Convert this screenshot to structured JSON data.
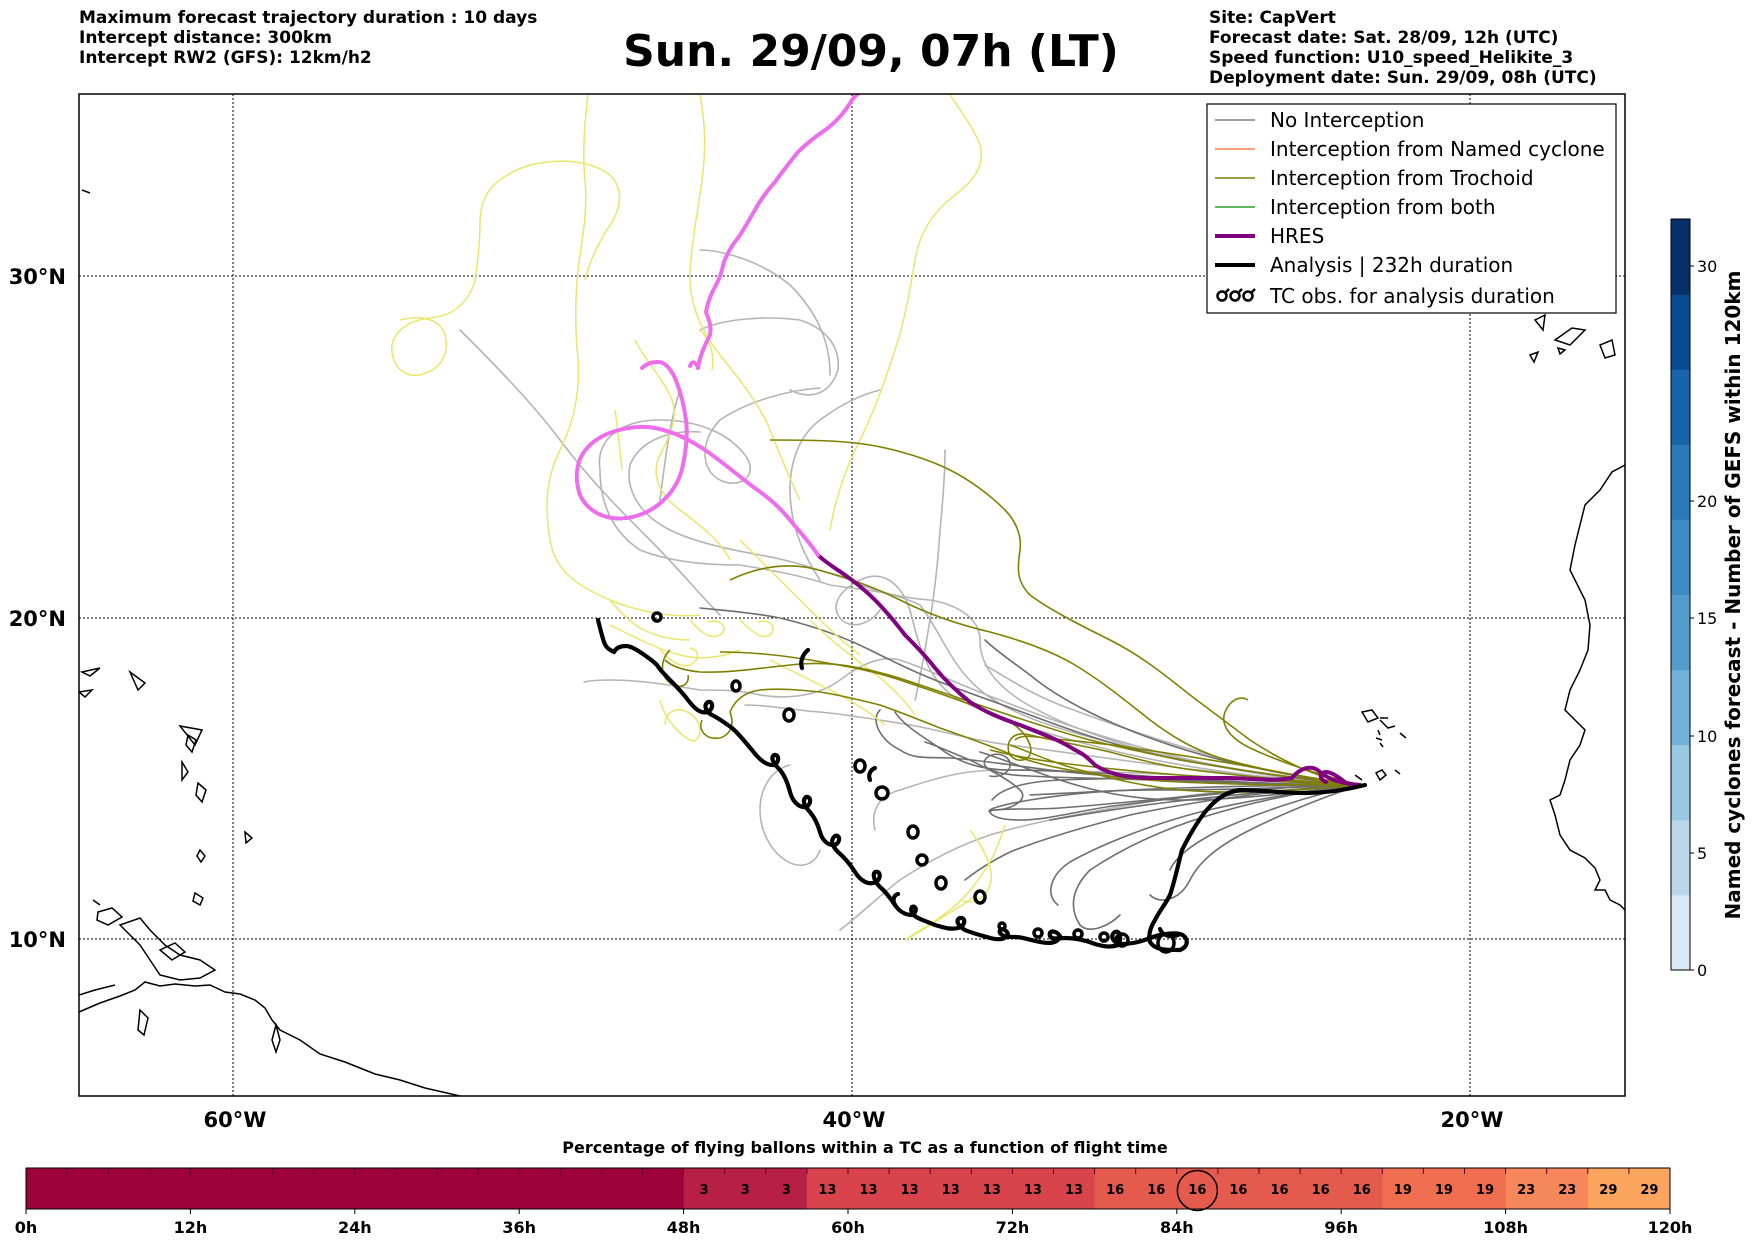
{
  "header": {
    "left": [
      "Maximum forecast trajectory duration : 10 days",
      "Intercept distance: 300km",
      "Intercept RW2 (GFS):  12km/h2"
    ],
    "title": "Sun. 29/09, 07h (LT)",
    "right": [
      "Site: CapVert",
      "Forecast date: Sat. 28/09, 12h (UTC)",
      "Speed function: U10_speed_Helikite_3",
      "Deployment date: Sun. 29/09, 08h (UTC)"
    ]
  },
  "map": {
    "lat_labels": [
      "30°N",
      "20°N",
      "10°N"
    ],
    "lon_labels": [
      "60°W",
      "40°W",
      "20°W"
    ],
    "legend": [
      {
        "label": "No Interception",
        "color": "#808080"
      },
      {
        "label": "Interception from Named cyclone",
        "color": "#ff7f50"
      },
      {
        "label": "Interception from Trochoid",
        "color": "#808000"
      },
      {
        "label": "Interception from both",
        "color": "#2ca02c"
      },
      {
        "label": "HRES",
        "color": "#800080"
      },
      {
        "label": "Analysis | 232h duration",
        "color": "#000000"
      },
      {
        "label": "TC obs. for analysis duration",
        "color": "#000000",
        "icon": "tc-symbol-icon"
      }
    ]
  },
  "colorbar": {
    "label": "Named cyclones forecast - Number of GEFS within 120km",
    "ticks": [
      "0",
      "5",
      "10",
      "15",
      "20",
      "30"
    ],
    "colors": [
      "#dbe9f6",
      "#bad6eb",
      "#9ac8e0",
      "#73b2d8",
      "#529dcc",
      "#3d8dc4",
      "#2a7ab9",
      "#1764ab",
      "#0a4a90",
      "#08306b"
    ]
  },
  "timeline": {
    "title": "Percentage of flying ballons within a TC as a function of flight time",
    "hour_labels": [
      "0h",
      "12h",
      "24h",
      "36h",
      "48h",
      "60h",
      "72h",
      "84h",
      "96h",
      "108h",
      "120h"
    ],
    "cell_values": [
      "",
      "",
      "",
      "",
      "",
      "",
      "",
      "",
      "",
      "",
      "",
      "",
      "",
      "",
      "",
      "",
      "3",
      "3",
      "3",
      "13",
      "13",
      "13",
      "13",
      "13",
      "13",
      "13",
      "16",
      "16",
      "16",
      "16",
      "16",
      "16",
      "16",
      "19",
      "19",
      "19",
      "23",
      "23",
      "29",
      "29"
    ],
    "circled_cell": 28,
    "colors": {
      "0": "#9e003a",
      "3": "#b81f47",
      "13": "#d8434c",
      "16": "#e45a4c",
      "19": "#ee6e4f",
      "23": "#f6875a",
      "29": "#fca55e"
    }
  }
}
